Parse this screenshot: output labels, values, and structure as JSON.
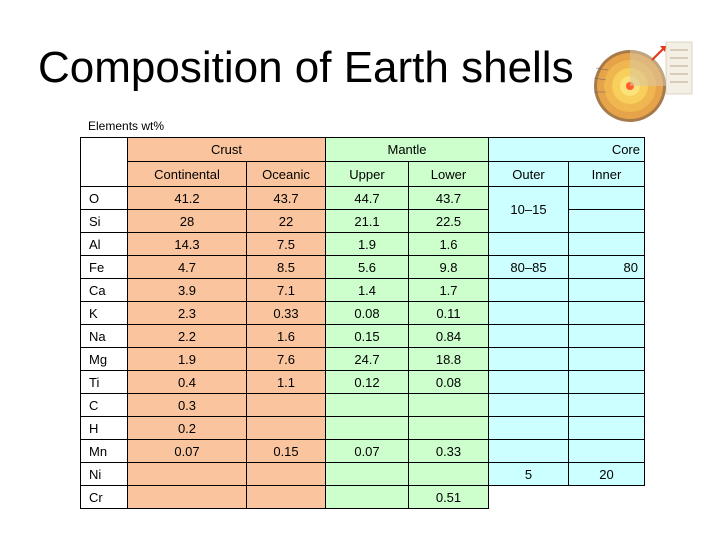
{
  "slide": {
    "title": "Composition of Earth shells",
    "subtitle": "Elements wt%"
  },
  "table": {
    "groups": {
      "crust": "Crust",
      "mantle": "Mantle",
      "core": "Core"
    },
    "subheaders": {
      "continental": "Continental",
      "oceanic": "Oceanic",
      "upper": "Upper",
      "lower": "Lower",
      "outer": "Outer",
      "inner": "Inner"
    },
    "rows": [
      {
        "element": "O",
        "continental": "41.2",
        "oceanic": "43.7",
        "upper": "44.7",
        "lower": "43.7"
      },
      {
        "element": "Si",
        "continental": "28",
        "oceanic": "22",
        "upper": "21.1",
        "lower": "22.5"
      },
      {
        "element": "Al",
        "continental": "14.3",
        "oceanic": "7.5",
        "upper": "1.9",
        "lower": "1.6"
      },
      {
        "element": "Fe",
        "continental": "4.7",
        "oceanic": "8.5",
        "upper": "5.6",
        "lower": "9.8"
      },
      {
        "element": "Ca",
        "continental": "3.9",
        "oceanic": "7.1",
        "upper": "1.4",
        "lower": "1.7"
      },
      {
        "element": "K",
        "continental": "2.3",
        "oceanic": "0.33",
        "upper": "0.08",
        "lower": "0.11"
      },
      {
        "element": "Na",
        "continental": "2.2",
        "oceanic": "1.6",
        "upper": "0.15",
        "lower": "0.84"
      },
      {
        "element": "Mg",
        "continental": "1.9",
        "oceanic": "7.6",
        "upper": "24.7",
        "lower": "18.8"
      },
      {
        "element": "Ti",
        "continental": "0.4",
        "oceanic": "1.1",
        "upper": "0.12",
        "lower": "0.08"
      },
      {
        "element": "C",
        "continental": "0.3",
        "oceanic": "",
        "upper": "",
        "lower": ""
      },
      {
        "element": "H",
        "continental": "0.2",
        "oceanic": "",
        "upper": "",
        "lower": ""
      },
      {
        "element": "Mn",
        "continental": "0.07",
        "oceanic": "0.15",
        "upper": "0.07",
        "lower": "0.33"
      },
      {
        "element": "Ni",
        "continental": "",
        "oceanic": "",
        "upper": "",
        "lower": ""
      },
      {
        "element": "Cr",
        "continental": "",
        "oceanic": "",
        "upper": "",
        "lower": "0.51"
      }
    ],
    "core_values": {
      "outer_o_si": "10–15",
      "outer_fe": "80–85",
      "inner_fe": "80",
      "outer_ni": "5",
      "inner_ni": "20"
    }
  },
  "colors": {
    "crust": "#FAC59E",
    "mantle": "#CCFFCC",
    "core": "#CCFFFF"
  },
  "icons": {
    "earth": "earth-layers-diagram-icon"
  }
}
